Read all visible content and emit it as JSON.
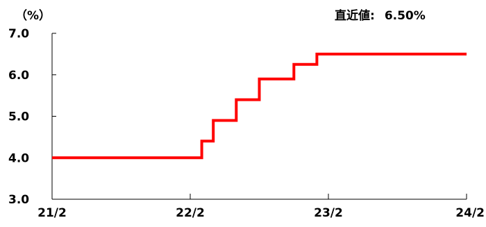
{
  "chart_data": {
    "type": "line",
    "unit_label": "（%）",
    "latest_label": "直近値:",
    "latest_value": "6.50%",
    "ylim": [
      3.0,
      7.0
    ],
    "y_ticks": [
      "3.0",
      "4.0",
      "5.0",
      "6.0",
      "7.0"
    ],
    "x_ticks": [
      "21/2",
      "22/2",
      "23/2",
      "24/2"
    ],
    "grid": false,
    "series_color": "#ff0000",
    "series": [
      {
        "x_months": [
          0,
          13,
          13,
          14,
          14,
          16,
          16,
          18,
          18,
          21,
          21,
          23,
          23,
          24,
          24,
          36
        ],
        "values": [
          4.0,
          4.0,
          4.4,
          4.4,
          4.9,
          4.9,
          5.4,
          5.4,
          5.9,
          5.9,
          6.25,
          6.25,
          6.5,
          6.5,
          6.5,
          6.5
        ]
      }
    ]
  }
}
